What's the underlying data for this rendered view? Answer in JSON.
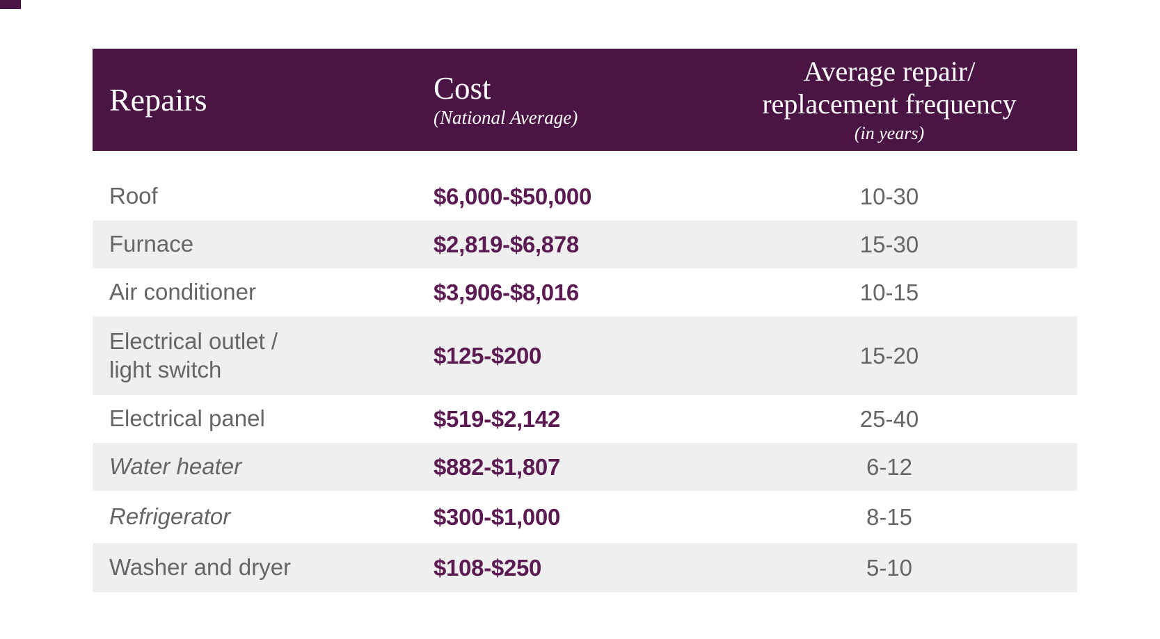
{
  "colors": {
    "header_bg": "#4a1545",
    "header_text": "#ffffff",
    "zebra_bg": "#efefef",
    "label_gray": "#636569",
    "cost_purple": "#5c1a52",
    "page_bg": "#ffffff"
  },
  "corner_mark": {
    "color": "#4a1545"
  },
  "header": {
    "col1_title": "Repairs",
    "col2_title": "Cost",
    "col2_subtitle": "(National Average)",
    "col3_title_line1": "Average repair/",
    "col3_title_line2": "replacement frequency",
    "col3_subtitle": "(in years)"
  },
  "rows": [
    {
      "repair_line1": "Roof",
      "repair_line2": "",
      "cost": "$6,000-$50,000",
      "frequency": "10-30",
      "italic": false,
      "shaded": false,
      "tall": false
    },
    {
      "repair_line1": "Furnace",
      "repair_line2": "",
      "cost": "$2,819-$6,878",
      "frequency": "15-30",
      "italic": false,
      "shaded": true,
      "tall": false
    },
    {
      "repair_line1": "Air conditioner",
      "repair_line2": "",
      "cost": "$3,906-$8,016",
      "frequency": "10-15",
      "italic": false,
      "shaded": false,
      "tall": false
    },
    {
      "repair_line1": "Electrical outlet /",
      "repair_line2": "light switch",
      "cost": "$125-$200",
      "frequency": "15-20",
      "italic": false,
      "shaded": true,
      "tall": true
    },
    {
      "repair_line1": "Electrical panel",
      "repair_line2": "",
      "cost": "$519-$2,142",
      "frequency": "25-40",
      "italic": false,
      "shaded": false,
      "tall": false
    },
    {
      "repair_line1": "Water heater",
      "repair_line2": "",
      "cost": "$882-$1,807",
      "frequency": "6-12",
      "italic": true,
      "shaded": true,
      "tall": false
    },
    {
      "repair_line1": "Refrigerator",
      "repair_line2": "",
      "cost": "$300-$1,000",
      "frequency": "8-15",
      "italic": true,
      "shaded": false,
      "tall": false
    },
    {
      "repair_line1": "Washer and dryer",
      "repair_line2": "",
      "cost": "$108-$250",
      "frequency": "5-10",
      "italic": false,
      "shaded": true,
      "tall": false
    }
  ],
  "chart_data": {
    "type": "table",
    "title": "",
    "columns": [
      "Repairs",
      "Cost (National Average)",
      "Average repair/replacement frequency (in years)"
    ],
    "rows": [
      [
        "Roof",
        "$6,000-$50,000",
        "10-30"
      ],
      [
        "Furnace",
        "$2,819-$6,878",
        "15-30"
      ],
      [
        "Air conditioner",
        "$3,906-$8,016",
        "10-15"
      ],
      [
        "Electrical outlet / light switch",
        "$125-$200",
        "15-20"
      ],
      [
        "Electrical panel",
        "$519-$2,142",
        "25-40"
      ],
      [
        "Water heater",
        "$882-$1,807",
        "6-12"
      ],
      [
        "Refrigerator",
        "$300-$1,000",
        "8-15"
      ],
      [
        "Washer and dryer",
        "$108-$250",
        "5-10"
      ]
    ],
    "layout": {
      "zebra_striping": true,
      "header_background": "#4a1545",
      "first_shaded_row_index": 1
    }
  }
}
